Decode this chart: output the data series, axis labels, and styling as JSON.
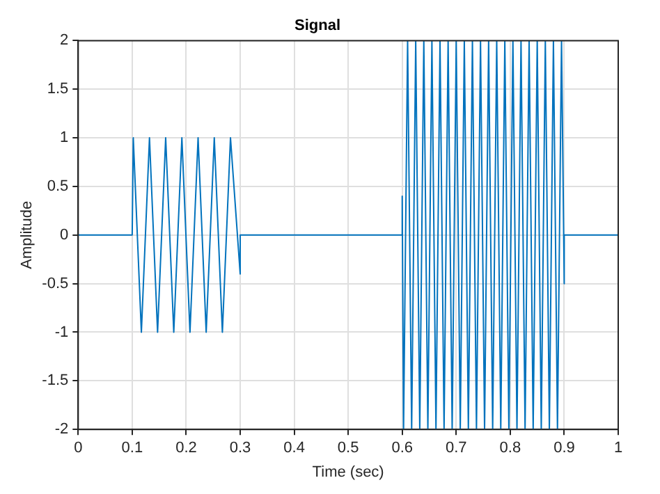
{
  "chart_data": {
    "type": "line",
    "title": "Signal",
    "xlabel": "Time (sec)",
    "ylabel": "Amplitude",
    "xlim": [
      0,
      1
    ],
    "xticks": [
      0,
      0.1,
      0.2,
      0.3,
      0.4,
      0.5,
      0.6,
      0.7,
      0.8,
      0.9,
      1
    ],
    "ylim": [
      -2,
      2
    ],
    "yticks": [
      -2,
      -1.5,
      -1,
      -0.5,
      0,
      0.5,
      1,
      1.5,
      2
    ],
    "grid": true,
    "marker": "none",
    "line_style": "solid",
    "x": [
      0,
      0.1,
      0.102,
      0.117,
      0.132,
      0.147,
      0.162,
      0.177,
      0.192,
      0.207,
      0.222,
      0.237,
      0.252,
      0.267,
      0.282,
      0.3,
      0.3,
      0.6,
      0.6,
      0.6025,
      0.61,
      0.6175,
      0.625,
      0.6325,
      0.64,
      0.6475,
      0.655,
      0.6625,
      0.67,
      0.6775,
      0.685,
      0.6925,
      0.7,
      0.7075,
      0.715,
      0.7225,
      0.73,
      0.7375,
      0.745,
      0.7525,
      0.76,
      0.7675,
      0.775,
      0.7825,
      0.79,
      0.7975,
      0.805,
      0.8125,
      0.82,
      0.8275,
      0.835,
      0.8425,
      0.85,
      0.8575,
      0.865,
      0.8725,
      0.88,
      0.8875,
      0.895,
      0.9,
      0.9,
      1
    ],
    "series": [
      {
        "color": "#0072bd",
        "values": [
          0,
          0,
          1,
          -1,
          1,
          -1,
          1,
          -1,
          1,
          -1,
          1,
          -1,
          1,
          -1,
          1,
          -0.4,
          0,
          0,
          0.4,
          -2,
          2,
          -2,
          2,
          -2,
          2,
          -2,
          2,
          -2,
          2,
          -2,
          2,
          -2,
          2,
          -2,
          2,
          -2,
          2,
          -2,
          2,
          -2,
          2,
          -2,
          2,
          -2,
          2,
          -2,
          2,
          -2,
          2,
          -2,
          2,
          -2,
          2,
          -2,
          2,
          -2,
          2,
          -2,
          2,
          -0.5,
          0,
          0
        ]
      }
    ]
  }
}
